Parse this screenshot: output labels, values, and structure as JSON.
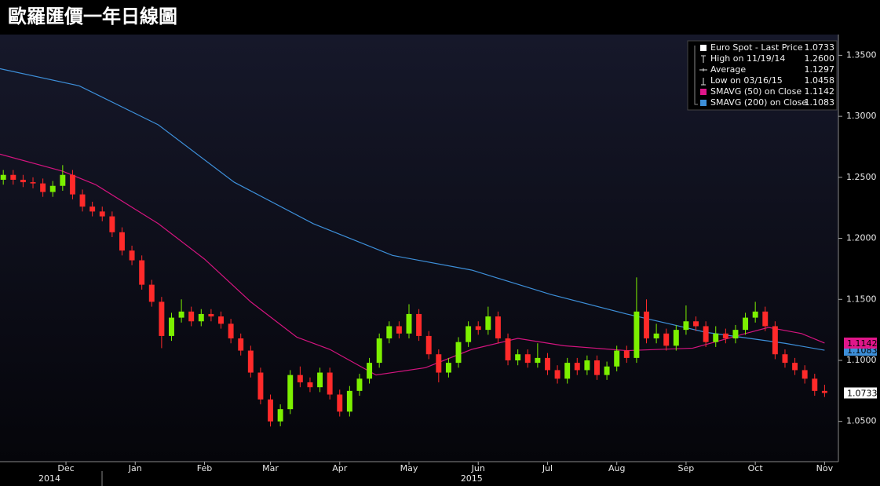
{
  "chart_data": {
    "type": "candlestick",
    "title": "歐羅匯價一年日線圖",
    "xlim": [
      0,
      253
    ],
    "xticks": [
      {
        "value": 20,
        "label": "Dec"
      },
      {
        "value": 41,
        "label": "Jan"
      },
      {
        "value": 62,
        "label": "Feb"
      },
      {
        "value": 82,
        "label": "Mar"
      },
      {
        "value": 103,
        "label": "Apr"
      },
      {
        "value": 124,
        "label": "May"
      },
      {
        "value": 145,
        "label": "Jun"
      },
      {
        "value": 166,
        "label": "Jul"
      },
      {
        "value": 187,
        "label": "Aug"
      },
      {
        "value": 208,
        "label": "Sep"
      },
      {
        "value": 229,
        "label": "Oct"
      },
      {
        "value": 250,
        "label": "Nov"
      }
    ],
    "x_year_labels": [
      {
        "value": 15,
        "label": "2014"
      },
      {
        "value": 143,
        "label": "2015"
      }
    ],
    "ylim": [
      1.017,
      1.367
    ],
    "yticks": [
      {
        "value": 1.05,
        "label": "1.0500"
      },
      {
        "value": 1.1,
        "label": "1.1000"
      },
      {
        "value": 1.15,
        "label": "1.1500"
      },
      {
        "value": 1.2,
        "label": "1.2000"
      },
      {
        "value": 1.25,
        "label": "1.2500"
      },
      {
        "value": 1.3,
        "label": "1.3000"
      },
      {
        "value": 1.35,
        "label": "1.3500"
      }
    ],
    "grid": false,
    "up_color": "#7cf000",
    "down_color": "#ff2a2a",
    "x": [
      1,
      4,
      7,
      10,
      13,
      16,
      19,
      22,
      25,
      28,
      31,
      34,
      37,
      40,
      43,
      46,
      49,
      52,
      55,
      58,
      61,
      64,
      67,
      70,
      73,
      76,
      79,
      82,
      85,
      88,
      91,
      94,
      97,
      100,
      103,
      106,
      109,
      112,
      115,
      118,
      121,
      124,
      127,
      130,
      133,
      136,
      139,
      142,
      145,
      148,
      151,
      154,
      157,
      160,
      163,
      166,
      169,
      172,
      175,
      178,
      181,
      184,
      187,
      190,
      193,
      196,
      199,
      202,
      205,
      208,
      211,
      214,
      217,
      220,
      223,
      226,
      229,
      232,
      235,
      238,
      241,
      244,
      247,
      250
    ],
    "open": [
      1.248,
      1.252,
      1.248,
      1.246,
      1.245,
      1.238,
      1.243,
      1.252,
      1.236,
      1.226,
      1.222,
      1.218,
      1.205,
      1.19,
      1.182,
      1.162,
      1.148,
      1.12,
      1.135,
      1.14,
      1.132,
      1.138,
      1.136,
      1.13,
      1.118,
      1.108,
      1.09,
      1.068,
      1.05,
      1.06,
      1.088,
      1.082,
      1.078,
      1.09,
      1.072,
      1.058,
      1.075,
      1.085,
      1.098,
      1.118,
      1.128,
      1.122,
      1.138,
      1.12,
      1.105,
      1.09,
      1.098,
      1.115,
      1.128,
      1.125,
      1.136,
      1.118,
      1.1,
      1.105,
      1.098,
      1.102,
      1.092,
      1.085,
      1.098,
      1.092,
      1.1,
      1.088,
      1.095,
      1.108,
      1.102,
      1.14,
      1.118,
      1.122,
      1.112,
      1.125,
      1.132,
      1.128,
      1.115,
      1.122,
      1.118,
      1.125,
      1.135,
      1.14,
      1.128,
      1.105,
      1.098,
      1.092,
      1.085,
      1.075
    ],
    "high": [
      1.256,
      1.256,
      1.252,
      1.25,
      1.249,
      1.247,
      1.26,
      1.256,
      1.24,
      1.23,
      1.226,
      1.222,
      1.209,
      1.194,
      1.186,
      1.166,
      1.152,
      1.139,
      1.15,
      1.144,
      1.142,
      1.142,
      1.14,
      1.134,
      1.122,
      1.112,
      1.094,
      1.072,
      1.064,
      1.092,
      1.095,
      1.086,
      1.094,
      1.094,
      1.076,
      1.079,
      1.089,
      1.102,
      1.122,
      1.132,
      1.132,
      1.146,
      1.142,
      1.124,
      1.109,
      1.102,
      1.119,
      1.132,
      1.132,
      1.144,
      1.14,
      1.122,
      1.109,
      1.109,
      1.114,
      1.106,
      1.096,
      1.102,
      1.102,
      1.104,
      1.104,
      1.099,
      1.112,
      1.112,
      1.168,
      1.15,
      1.13,
      1.126,
      1.129,
      1.145,
      1.136,
      1.132,
      1.128,
      1.126,
      1.129,
      1.139,
      1.148,
      1.144,
      1.132,
      1.109,
      1.102,
      1.096,
      1.089,
      1.08
    ],
    "low": [
      1.244,
      1.244,
      1.242,
      1.241,
      1.234,
      1.234,
      1.239,
      1.232,
      1.222,
      1.218,
      1.214,
      1.201,
      1.186,
      1.178,
      1.158,
      1.144,
      1.11,
      1.116,
      1.131,
      1.128,
      1.128,
      1.132,
      1.126,
      1.114,
      1.104,
      1.086,
      1.064,
      1.0458,
      1.046,
      1.056,
      1.078,
      1.074,
      1.074,
      1.068,
      1.054,
      1.054,
      1.071,
      1.081,
      1.094,
      1.114,
      1.118,
      1.118,
      1.116,
      1.101,
      1.082,
      1.086,
      1.094,
      1.111,
      1.121,
      1.121,
      1.114,
      1.096,
      1.096,
      1.094,
      1.094,
      1.088,
      1.081,
      1.081,
      1.088,
      1.088,
      1.084,
      1.084,
      1.091,
      1.098,
      1.098,
      1.114,
      1.114,
      1.108,
      1.108,
      1.121,
      1.124,
      1.111,
      1.111,
      1.114,
      1.114,
      1.121,
      1.131,
      1.124,
      1.101,
      1.094,
      1.088,
      1.081,
      1.071,
      1.07
    ],
    "close": [
      1.252,
      1.248,
      1.246,
      1.245,
      1.238,
      1.243,
      1.252,
      1.236,
      1.226,
      1.222,
      1.218,
      1.205,
      1.19,
      1.182,
      1.162,
      1.148,
      1.12,
      1.135,
      1.14,
      1.132,
      1.138,
      1.136,
      1.13,
      1.118,
      1.108,
      1.09,
      1.068,
      1.05,
      1.06,
      1.088,
      1.082,
      1.078,
      1.09,
      1.072,
      1.058,
      1.075,
      1.085,
      1.098,
      1.118,
      1.128,
      1.122,
      1.138,
      1.12,
      1.105,
      1.09,
      1.098,
      1.115,
      1.128,
      1.125,
      1.136,
      1.118,
      1.1,
      1.105,
      1.098,
      1.102,
      1.092,
      1.085,
      1.098,
      1.092,
      1.1,
      1.088,
      1.095,
      1.108,
      1.102,
      1.14,
      1.118,
      1.122,
      1.112,
      1.125,
      1.132,
      1.128,
      1.115,
      1.122,
      1.118,
      1.125,
      1.135,
      1.14,
      1.128,
      1.105,
      1.098,
      1.092,
      1.085,
      1.075,
      1.0733
    ],
    "lines": [
      {
        "name": "SMAVG (50) on Close",
        "color": "#d4147f",
        "x": [
          0,
          19,
          29,
          48,
          62,
          76,
          90,
          100,
          114,
          129,
          143,
          157,
          171,
          190,
          210,
          226,
          233,
          243,
          250
        ],
        "values": [
          1.269,
          1.255,
          1.244,
          1.212,
          1.183,
          1.148,
          1.119,
          1.109,
          1.088,
          1.094,
          1.109,
          1.118,
          1.112,
          1.108,
          1.11,
          1.122,
          1.127,
          1.122,
          1.1142
        ]
      },
      {
        "name": "SMAVG (200) on Close",
        "color": "#3d8fd9",
        "x": [
          0,
          24,
          48,
          71,
          95,
          119,
          143,
          167,
          190,
          214,
          238,
          250
        ],
        "values": [
          1.339,
          1.325,
          1.293,
          1.246,
          1.212,
          1.186,
          1.174,
          1.154,
          1.138,
          1.123,
          1.114,
          1.1083
        ]
      }
    ],
    "end_labels": [
      {
        "value": 1.1083,
        "label": "1.1083",
        "color": "#3d8fd9"
      },
      {
        "value": 1.1142,
        "label": "1.1142",
        "color": "#e0168a"
      },
      {
        "value": 1.0733,
        "label": "1.0733",
        "color": "#ffffff"
      }
    ],
    "legend": [
      {
        "name": "Euro Spot - Last Price",
        "stat": "1.0733",
        "marker": "square",
        "color": "#ffffff"
      },
      {
        "name": "High on 11/19/14",
        "stat": "1.2600",
        "marker": "high"
      },
      {
        "name": "Average",
        "stat": "1.1297",
        "marker": "avg"
      },
      {
        "name": "Low on 03/16/15",
        "stat": "1.0458",
        "marker": "low"
      },
      {
        "name": "SMAVG (50) on Close",
        "stat": "1.1142",
        "marker": "square",
        "color": "#e0168a"
      },
      {
        "name": "SMAVG (200) on Close",
        "stat": "1.1083",
        "marker": "square",
        "color": "#3d8fd9"
      }
    ]
  }
}
